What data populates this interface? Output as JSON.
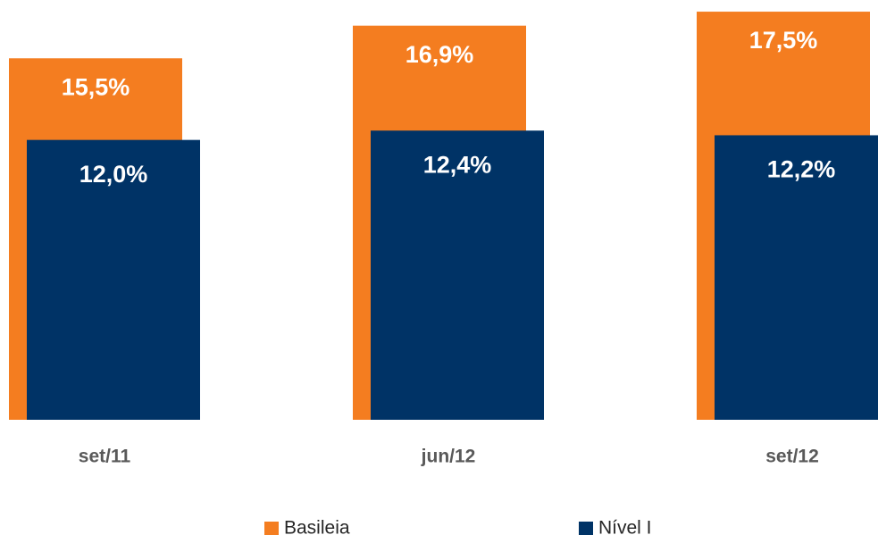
{
  "chart_data": {
    "type": "bar",
    "categories": [
      "set/11",
      "jun/12",
      "set/12"
    ],
    "series": [
      {
        "name": "Basileia",
        "color": "#f47d20",
        "values": [
          15.5,
          16.9,
          17.5
        ],
        "value_labels": [
          "15,5%",
          "16,9%",
          "17,5%"
        ]
      },
      {
        "name": "Nível I",
        "color": "#003366",
        "values": [
          12.0,
          12.4,
          12.2
        ],
        "value_labels": [
          "12,0%",
          "12,4%",
          "12,2%"
        ]
      }
    ],
    "ylim": [
      0,
      18
    ],
    "legend": "bottom"
  }
}
